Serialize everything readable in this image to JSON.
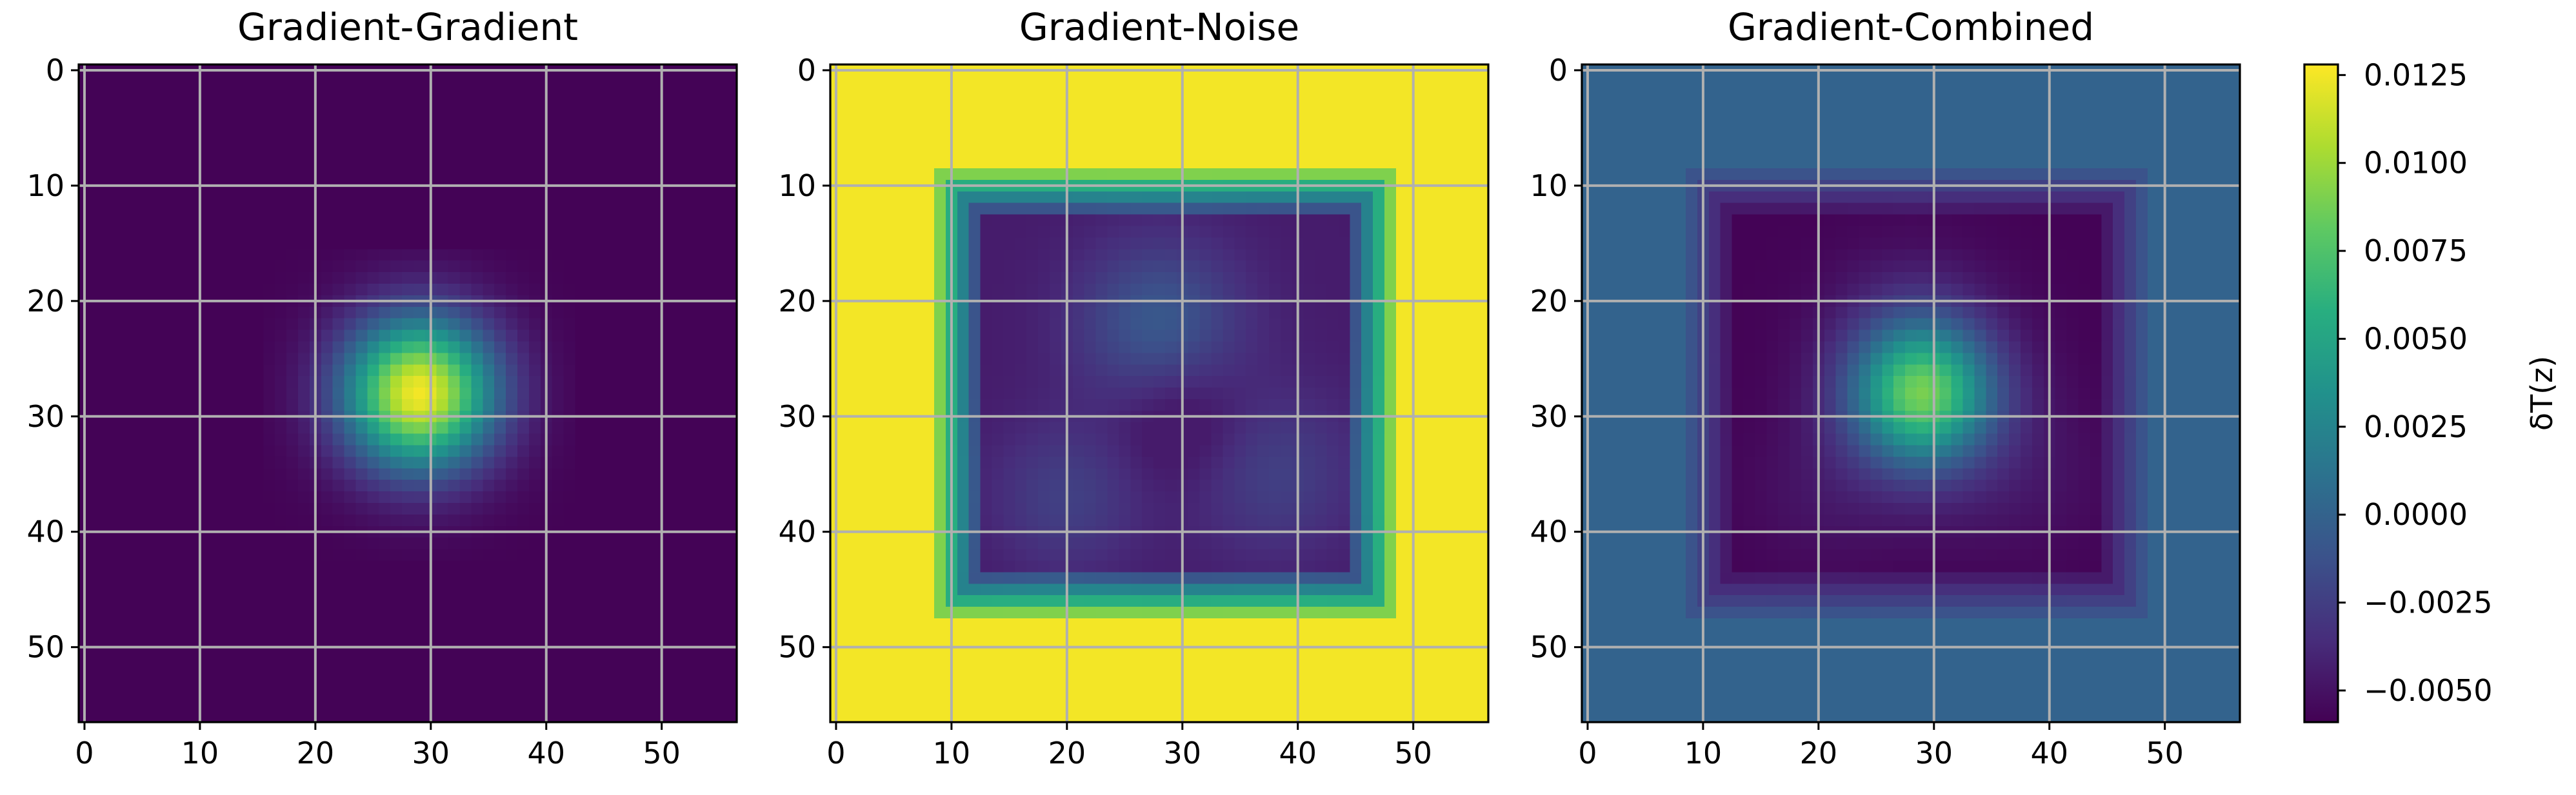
{
  "chart_data": [
    {
      "type": "heatmap",
      "title": "Gradient-Gradient",
      "pattern": "gaussian-peak",
      "grid_size": 57,
      "xlim": [
        -0.5,
        56.5
      ],
      "ylim": [
        56.5,
        -0.5
      ],
      "xticks": [
        0,
        10,
        20,
        30,
        40,
        50
      ],
      "yticks": [
        0,
        10,
        20,
        30,
        40,
        50
      ],
      "tick_labels": [
        "0",
        "10",
        "20",
        "30",
        "40",
        "50"
      ],
      "peak": {
        "x": 29,
        "y": 28,
        "value": 0.0125
      },
      "background_value": -0.0058,
      "nonzero_region": {
        "x": [
          16,
          42
        ],
        "y": [
          16,
          42
        ]
      },
      "grid": true
    },
    {
      "type": "heatmap",
      "title": "Gradient-Noise",
      "pattern": "noise-ring",
      "grid_size": 57,
      "xlim": [
        -0.5,
        56.5
      ],
      "ylim": [
        56.5,
        -0.5
      ],
      "xticks": [
        0,
        10,
        20,
        30,
        40,
        50
      ],
      "yticks": [
        0,
        10,
        20,
        30,
        40,
        50
      ],
      "tick_labels": [
        "0",
        "10",
        "20",
        "30",
        "40",
        "50"
      ],
      "minimum": {
        "x": 28,
        "y": 22,
        "value": -0.0045
      },
      "background_value": 0.0125,
      "nonzero_region": {
        "x": [
          8,
          49
        ],
        "y": [
          8,
          48
        ]
      },
      "grid": true
    },
    {
      "type": "heatmap",
      "title": "Gradient-Combined",
      "pattern": "peak-with-negative-ring",
      "grid_size": 57,
      "xlim": [
        -0.5,
        56.5
      ],
      "ylim": [
        56.5,
        -0.5
      ],
      "xticks": [
        0,
        10,
        20,
        30,
        40,
        50
      ],
      "yticks": [
        0,
        10,
        20,
        30,
        40,
        50
      ],
      "tick_labels": [
        "0",
        "10",
        "20",
        "30",
        "40",
        "50"
      ],
      "peak": {
        "x": 29,
        "y": 28,
        "value": 0.0115
      },
      "minimum": {
        "x": 22,
        "y": 16,
        "value": -0.0058
      },
      "background_value": 0.0,
      "nonzero_region": {
        "x": [
          8,
          49
        ],
        "y": [
          8,
          48
        ]
      },
      "grid": true
    }
  ],
  "colorbar": {
    "colormap": "viridis",
    "vmin": -0.0059,
    "vmax": 0.0128,
    "label": "δT(z)",
    "ticks": [
      0.0125,
      0.01,
      0.0075,
      0.005,
      0.0025,
      0.0,
      -0.0025,
      -0.005
    ],
    "tick_labels": [
      "0.0125",
      "0.0100",
      "0.0075",
      "0.0050",
      "0.0025",
      "0.0000",
      "−0.0025",
      "−0.0050"
    ]
  }
}
